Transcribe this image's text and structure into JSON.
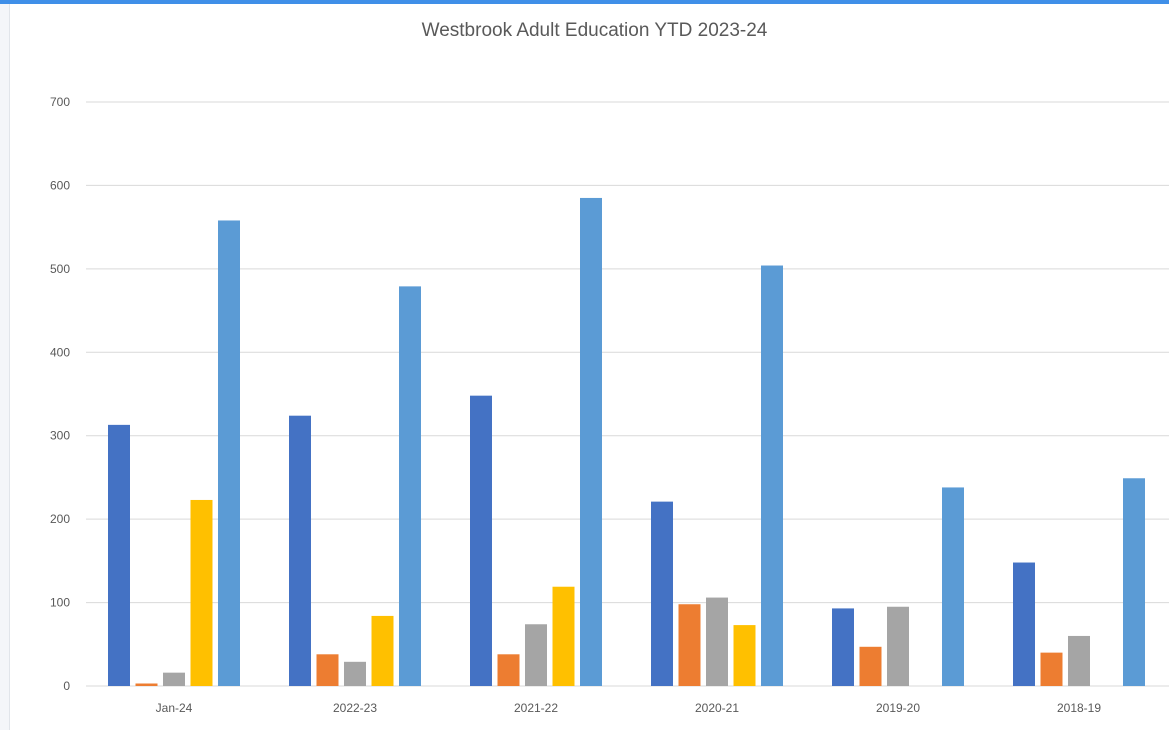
{
  "chart_data": {
    "type": "bar",
    "title": "Westbrook Adult Education YTD 2023-24",
    "xlabel": "",
    "ylabel": "",
    "categories": [
      "Jan-24",
      "2022-23",
      "2021-22",
      "2020-21",
      "2019-20",
      "2018-19"
    ],
    "ylim": [
      0,
      700
    ],
    "yticks": [
      0,
      100,
      200,
      300,
      400,
      500,
      600,
      700
    ],
    "grid": true,
    "legend": "none",
    "series": [
      {
        "color": "#4472c4",
        "values": [
          313,
          324,
          348,
          221,
          93,
          148
        ]
      },
      {
        "color": "#ed7d31",
        "values": [
          3,
          38,
          38,
          98,
          47,
          40
        ]
      },
      {
        "color": "#a5a5a5",
        "values": [
          16,
          29,
          74,
          106,
          95,
          60
        ]
      },
      {
        "color": "#ffc000",
        "values": [
          223,
          84,
          119,
          73,
          0,
          0
        ]
      },
      {
        "color": "#5b9bd5",
        "values": [
          558,
          479,
          585,
          504,
          238,
          249
        ]
      }
    ]
  },
  "colors": {
    "gridline": "#d9d9d9",
    "axis_text": "#595959",
    "top_accent": "#3f8fe8"
  }
}
